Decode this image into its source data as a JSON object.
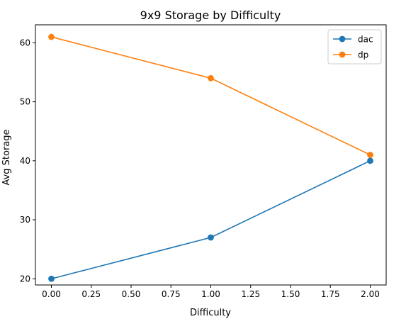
{
  "chart_data": {
    "type": "line",
    "title": "9x9 Storage by Difficulty",
    "xlabel": "Difficulty",
    "ylabel": "Avg Storage",
    "xlim": [
      -0.1,
      2.1
    ],
    "ylim": [
      18.95,
      63.05
    ],
    "xticks": [
      0.0,
      0.25,
      0.5,
      0.75,
      1.0,
      1.25,
      1.5,
      1.75,
      2.0
    ],
    "xtick_labels": [
      "0.00",
      "0.25",
      "0.50",
      "0.75",
      "1.00",
      "1.25",
      "1.50",
      "1.75",
      "2.00"
    ],
    "yticks": [
      20,
      30,
      40,
      50,
      60
    ],
    "ytick_labels": [
      "20",
      "30",
      "40",
      "50",
      "60"
    ],
    "grid": false,
    "legend_position": "top-right",
    "x": [
      0,
      1,
      2
    ],
    "series": [
      {
        "name": "dac",
        "color": "#1f77b4",
        "values": [
          20,
          27,
          40
        ]
      },
      {
        "name": "dp",
        "color": "#ff7f0e",
        "values": [
          61,
          54,
          41
        ]
      }
    ]
  }
}
